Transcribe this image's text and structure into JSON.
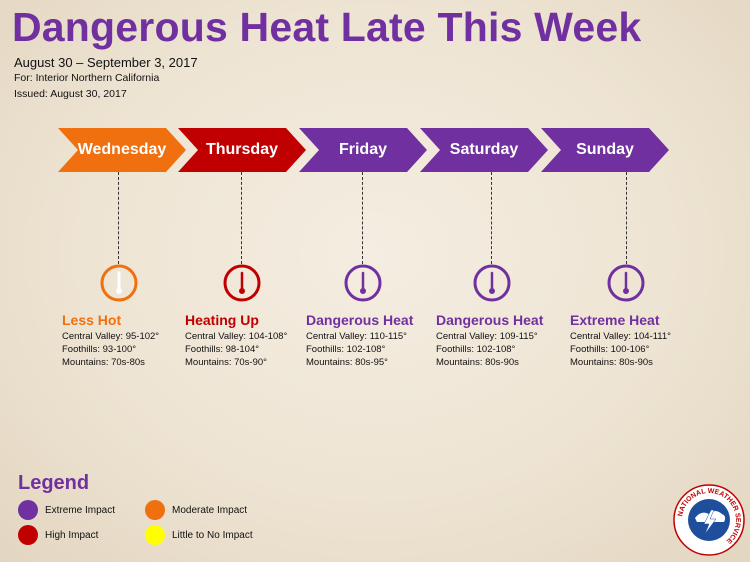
{
  "title": "Dangerous Heat Late This Week",
  "dates": "August 30 – September 3, 2017",
  "for_text": "For: Interior Northern California",
  "issued_text": "Issued: August 30, 2017",
  "colors": {
    "extreme": "#7030a0",
    "high": "#c00000",
    "moderate": "#f07010",
    "low": "#ffff00"
  },
  "days": [
    {
      "name": "Wednesday",
      "impact": "Less Hot",
      "level": "moderate",
      "color": "#f07010",
      "central_valley": "Central Valley:  95-102°",
      "foothills": "Foothills:  93-100°",
      "mountains": "Mountains:  70s-80s"
    },
    {
      "name": "Thursday",
      "impact": "Heating Up",
      "level": "high",
      "color": "#c00000",
      "central_valley": "Central Valley:  104-108°",
      "foothills": "Foothills:  98-104°",
      "mountains": "Mountains:  70s-90°"
    },
    {
      "name": "Friday",
      "impact": "Dangerous Heat",
      "level": "extreme",
      "color": "#7030a0",
      "central_valley": "Central Valley:  110-115°",
      "foothills": "Foothills:  102-108°",
      "mountains": "Mountains:  80s-95°"
    },
    {
      "name": "Saturday",
      "impact": "Dangerous Heat",
      "level": "extreme",
      "color": "#7030a0",
      "central_valley": "Central Valley:  109-115°",
      "foothills": "Foothills:  102-108°",
      "mountains": "Mountains:  80s-90s"
    },
    {
      "name": "Sunday",
      "impact": "Extreme Heat",
      "level": "extreme",
      "color": "#7030a0",
      "central_valley": "Central Valley:  104-111°",
      "foothills": "Foothills:  100-106°",
      "mountains": "Mountains:  80s-90s"
    }
  ],
  "legend": {
    "title": "Legend",
    "items": [
      {
        "label": "Extreme Impact",
        "color": "#7030a0"
      },
      {
        "label": "Moderate Impact",
        "color": "#f07010"
      },
      {
        "label": "High Impact",
        "color": "#c00000"
      },
      {
        "label": "Little to No Impact",
        "color": "#ffff00"
      }
    ]
  },
  "logo": {
    "text": "NATIONAL WEATHER SERVICE",
    "icon": "nws-logo"
  }
}
